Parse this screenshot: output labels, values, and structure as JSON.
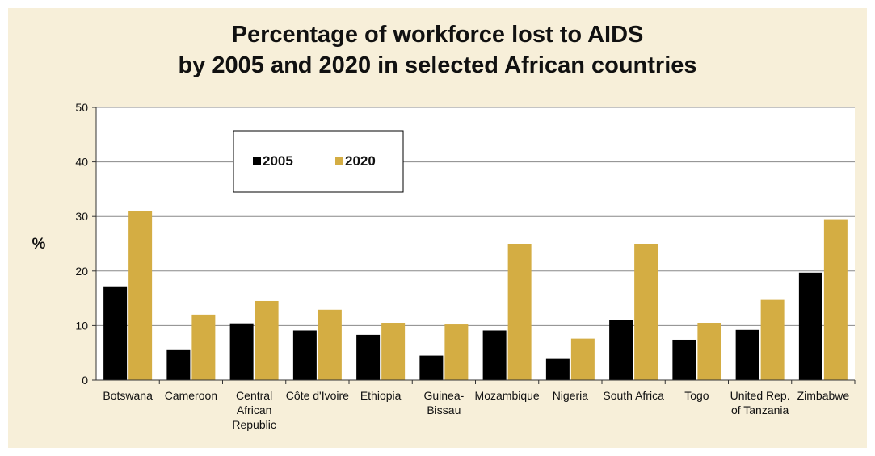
{
  "chart_data": {
    "type": "bar",
    "title_line1": "Percentage of workforce lost to AIDS",
    "title_line2": "by 2005 and 2020 in selected African countries",
    "ylabel": "%",
    "ylim": [
      0,
      50
    ],
    "yticks": [
      0,
      10,
      20,
      30,
      40,
      50
    ],
    "grid": true,
    "legend_position": "top-left",
    "categories": [
      [
        "Botswana"
      ],
      [
        "Cameroon"
      ],
      [
        "Central",
        "African",
        "Republic"
      ],
      [
        "Côte d'Ivoire"
      ],
      [
        "Ethiopia"
      ],
      [
        "Guinea-",
        "Bissau"
      ],
      [
        "Mozambique"
      ],
      [
        "Nigeria"
      ],
      [
        "South Africa"
      ],
      [
        "Togo"
      ],
      [
        "United Rep.",
        "of Tanzania"
      ],
      [
        "Zimbabwe"
      ]
    ],
    "series": [
      {
        "name": "2005",
        "color": "#000000",
        "values": [
          17.2,
          5.5,
          10.4,
          9.1,
          8.3,
          4.5,
          9.1,
          3.9,
          11.0,
          7.4,
          9.2,
          19.7
        ]
      },
      {
        "name": "2020",
        "color": "#d4ad43",
        "values": [
          31.0,
          12.0,
          14.5,
          12.9,
          10.5,
          10.2,
          25.0,
          7.6,
          25.0,
          10.5,
          14.7,
          29.5
        ]
      }
    ]
  },
  "colors": {
    "panel_bg": "#f7efd9",
    "plot_bg": "#ffffff",
    "grid": "#888888"
  }
}
